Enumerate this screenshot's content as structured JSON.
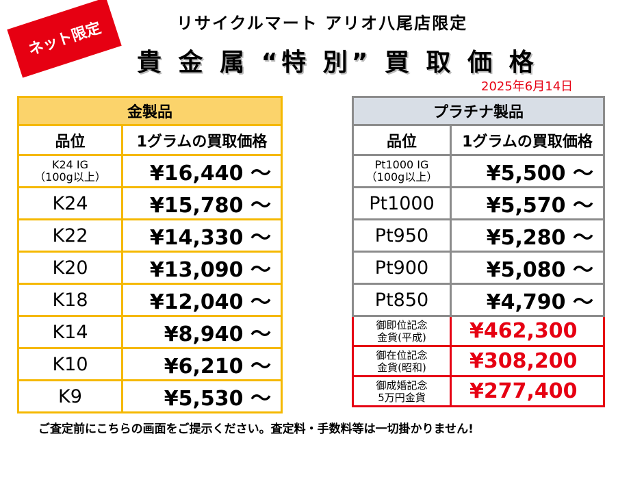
{
  "badge": "ネット限定",
  "shop_name": "リサイクルマート アリオ八尾店限定",
  "main_title": "貴 金 属 “特 別” 買 取 価 格",
  "date": "2025年6月14日",
  "gold": {
    "title": "金製品",
    "col_grade": "品位",
    "col_price": "1グラムの買取価格",
    "rows": [
      {
        "grade": "K24 IG",
        "sub": "（100g以上）",
        "price": "¥16,440 ～"
      },
      {
        "grade": "K24",
        "price": "¥15,780 ～"
      },
      {
        "grade": "K22",
        "price": "¥14,330 ～"
      },
      {
        "grade": "K20",
        "price": "¥13,090 ～"
      },
      {
        "grade": "K18",
        "price": "¥12,040 ～"
      },
      {
        "grade": "K14",
        "price": "¥8,940 ～"
      },
      {
        "grade": "K10",
        "price": "¥6,210 ～"
      },
      {
        "grade": "K9",
        "price": "¥5,530 ～"
      }
    ]
  },
  "platinum": {
    "title": "プラチナ製品",
    "col_grade": "品位",
    "col_price": "1グラムの買取価格",
    "rows": [
      {
        "grade": "Pt1000 IG",
        "sub": "（100g以上）",
        "price": "¥5,500 ～"
      },
      {
        "grade": "Pt1000",
        "price": "¥5,570 ～"
      },
      {
        "grade": "Pt950",
        "price": "¥5,280 ～"
      },
      {
        "grade": "Pt900",
        "price": "¥5,080 ～"
      },
      {
        "grade": "Pt850",
        "price": "¥4,790 ～"
      }
    ],
    "coins": [
      {
        "line1": "御即位記念",
        "line2": "金貨(平成)",
        "price": "¥462,300"
      },
      {
        "line1": "御在位記念",
        "line2": "金貨(昭和)",
        "price": "¥308,200"
      },
      {
        "line1": "御成婚記念",
        "line2": "5万円金貨",
        "price": "¥277,400"
      }
    ]
  },
  "footer": "ご査定前にこちらの画面をご提示ください。査定料・手数料等は一切掛かりません!",
  "colors": {
    "accent_red": "#e60012",
    "gold_header": "#fbd36b",
    "gold_border": "#f5b800",
    "plat_header": "#d8dee6",
    "plat_border": "#8c8c8c"
  }
}
